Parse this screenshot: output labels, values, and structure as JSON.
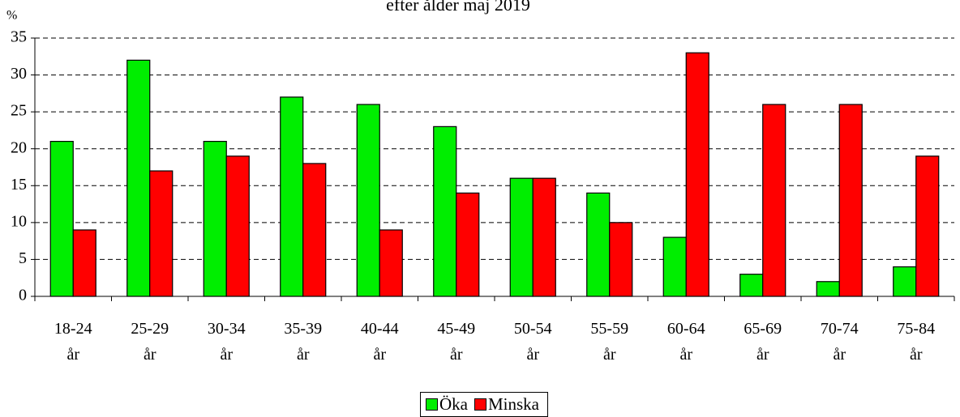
{
  "chart_data": {
    "type": "bar",
    "title": "efter ålder maj 2019",
    "y_label": "%",
    "categories": [
      "18-24 år",
      "25-29 år",
      "30-34 år",
      "35-39 år",
      "40-44 år",
      "45-49 år",
      "50-54 år",
      "55-59 år",
      "60-64 år",
      "65-69 år",
      "70-74 år",
      "75-84 år"
    ],
    "series": [
      {
        "name": "Öka",
        "color": "#00ee00",
        "values": [
          21,
          32,
          21,
          27,
          26,
          23,
          16,
          14,
          8,
          3,
          2,
          4
        ]
      },
      {
        "name": "Minska",
        "color": "#ff0000",
        "values": [
          9,
          17,
          19,
          18,
          9,
          14,
          16,
          10,
          33,
          26,
          26,
          19
        ]
      }
    ],
    "ylim": [
      0,
      35
    ],
    "yticks": [
      0,
      5,
      10,
      15,
      20,
      25,
      30,
      35
    ],
    "grid": true,
    "legend": "bottom"
  }
}
